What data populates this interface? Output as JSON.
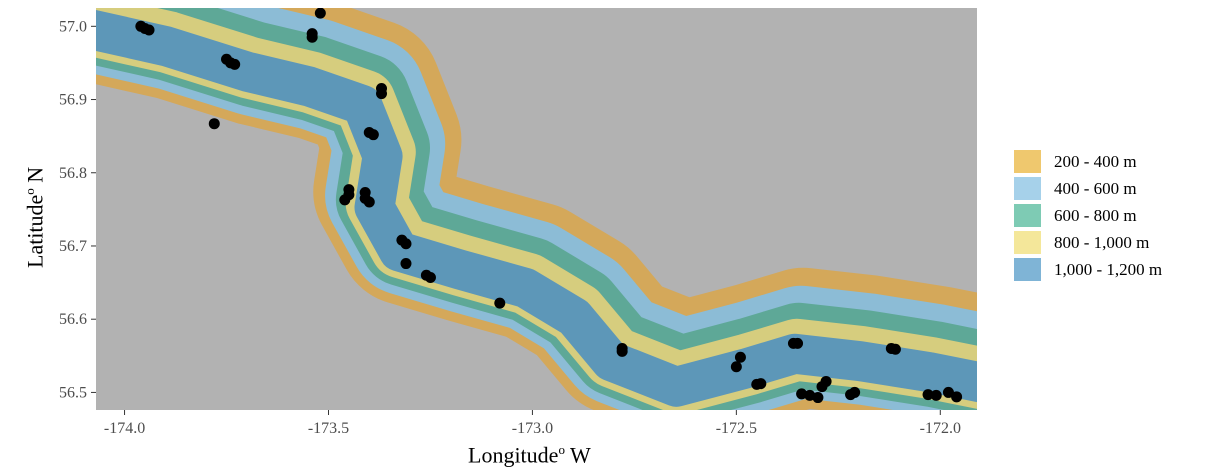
{
  "map": {
    "x_axis": {
      "title": "Longitude",
      "title_sup": "o",
      "title_suffix": " W",
      "ticks": [
        {
          "value": -174.0,
          "label": "-174.0"
        },
        {
          "value": -173.5,
          "label": "-173.5"
        },
        {
          "value": -173.0,
          "label": "-173.0"
        },
        {
          "value": -172.5,
          "label": "-172.5"
        },
        {
          "value": -172.0,
          "label": "-172.0"
        }
      ],
      "range": [
        -174.07,
        -171.91
      ]
    },
    "y_axis": {
      "title": "Latitude",
      "title_sup": "o",
      "title_suffix": " N",
      "ticks": [
        {
          "value": 56.5,
          "label": "56.5"
        },
        {
          "value": 56.6,
          "label": "56.6"
        },
        {
          "value": 56.7,
          "label": "56.7"
        },
        {
          "value": 56.8,
          "label": "56.8"
        },
        {
          "value": 56.9,
          "label": "56.9"
        },
        {
          "value": 57.0,
          "label": "57.0"
        }
      ],
      "range": [
        56.476,
        57.025
      ]
    },
    "background_color": "#b2b2b2",
    "legend": [
      {
        "label": "200 - 400 m",
        "color": "#efc86e"
      },
      {
        "label": "400 - 600 m",
        "color": "#a6d1ea"
      },
      {
        "label": "600 - 800 m",
        "color": "#7ecbb4"
      },
      {
        "label": "800 - 1,000 m",
        "color": "#f4e79a"
      },
      {
        "label": "1,000 - 1,200 m",
        "color": "#7fb4d6"
      }
    ],
    "band_colors": [
      "#d4a85a",
      "#8cbcd6",
      "#5ea897",
      "#d6cd7e",
      "#5d97b8"
    ],
    "points": [
      {
        "lon": -173.96,
        "lat": 57.0
      },
      {
        "lon": -173.95,
        "lat": 56.997
      },
      {
        "lon": -173.94,
        "lat": 56.995
      },
      {
        "lon": -173.75,
        "lat": 56.955
      },
      {
        "lon": -173.74,
        "lat": 56.95
      },
      {
        "lon": -173.73,
        "lat": 56.948
      },
      {
        "lon": -173.78,
        "lat": 56.867
      },
      {
        "lon": -173.54,
        "lat": 56.99
      },
      {
        "lon": -173.54,
        "lat": 56.985
      },
      {
        "lon": -173.52,
        "lat": 57.018
      },
      {
        "lon": -173.37,
        "lat": 56.915
      },
      {
        "lon": -173.37,
        "lat": 56.908
      },
      {
        "lon": -173.4,
        "lat": 56.855
      },
      {
        "lon": -173.39,
        "lat": 56.852
      },
      {
        "lon": -173.45,
        "lat": 56.777
      },
      {
        "lon": -173.45,
        "lat": 56.77
      },
      {
        "lon": -173.46,
        "lat": 56.763
      },
      {
        "lon": -173.41,
        "lat": 56.773
      },
      {
        "lon": -173.41,
        "lat": 56.765
      },
      {
        "lon": -173.4,
        "lat": 56.76
      },
      {
        "lon": -173.32,
        "lat": 56.708
      },
      {
        "lon": -173.31,
        "lat": 56.703
      },
      {
        "lon": -173.31,
        "lat": 56.676
      },
      {
        "lon": -173.26,
        "lat": 56.66
      },
      {
        "lon": -173.25,
        "lat": 56.657
      },
      {
        "lon": -173.08,
        "lat": 56.622
      },
      {
        "lon": -172.78,
        "lat": 56.56
      },
      {
        "lon": -172.78,
        "lat": 56.556
      },
      {
        "lon": -172.49,
        "lat": 56.548
      },
      {
        "lon": -172.5,
        "lat": 56.535
      },
      {
        "lon": -172.36,
        "lat": 56.567
      },
      {
        "lon": -172.35,
        "lat": 56.567
      },
      {
        "lon": -172.45,
        "lat": 56.511
      },
      {
        "lon": -172.44,
        "lat": 56.512
      },
      {
        "lon": -172.34,
        "lat": 56.498
      },
      {
        "lon": -172.32,
        "lat": 56.496
      },
      {
        "lon": -172.3,
        "lat": 56.493
      },
      {
        "lon": -172.29,
        "lat": 56.508
      },
      {
        "lon": -172.28,
        "lat": 56.515
      },
      {
        "lon": -172.22,
        "lat": 56.497
      },
      {
        "lon": -172.21,
        "lat": 56.5
      },
      {
        "lon": -172.12,
        "lat": 56.56
      },
      {
        "lon": -172.11,
        "lat": 56.559
      },
      {
        "lon": -172.03,
        "lat": 56.497
      },
      {
        "lon": -172.01,
        "lat": 56.496
      },
      {
        "lon": -171.98,
        "lat": 56.5
      },
      {
        "lon": -171.96,
        "lat": 56.494
      }
    ]
  }
}
